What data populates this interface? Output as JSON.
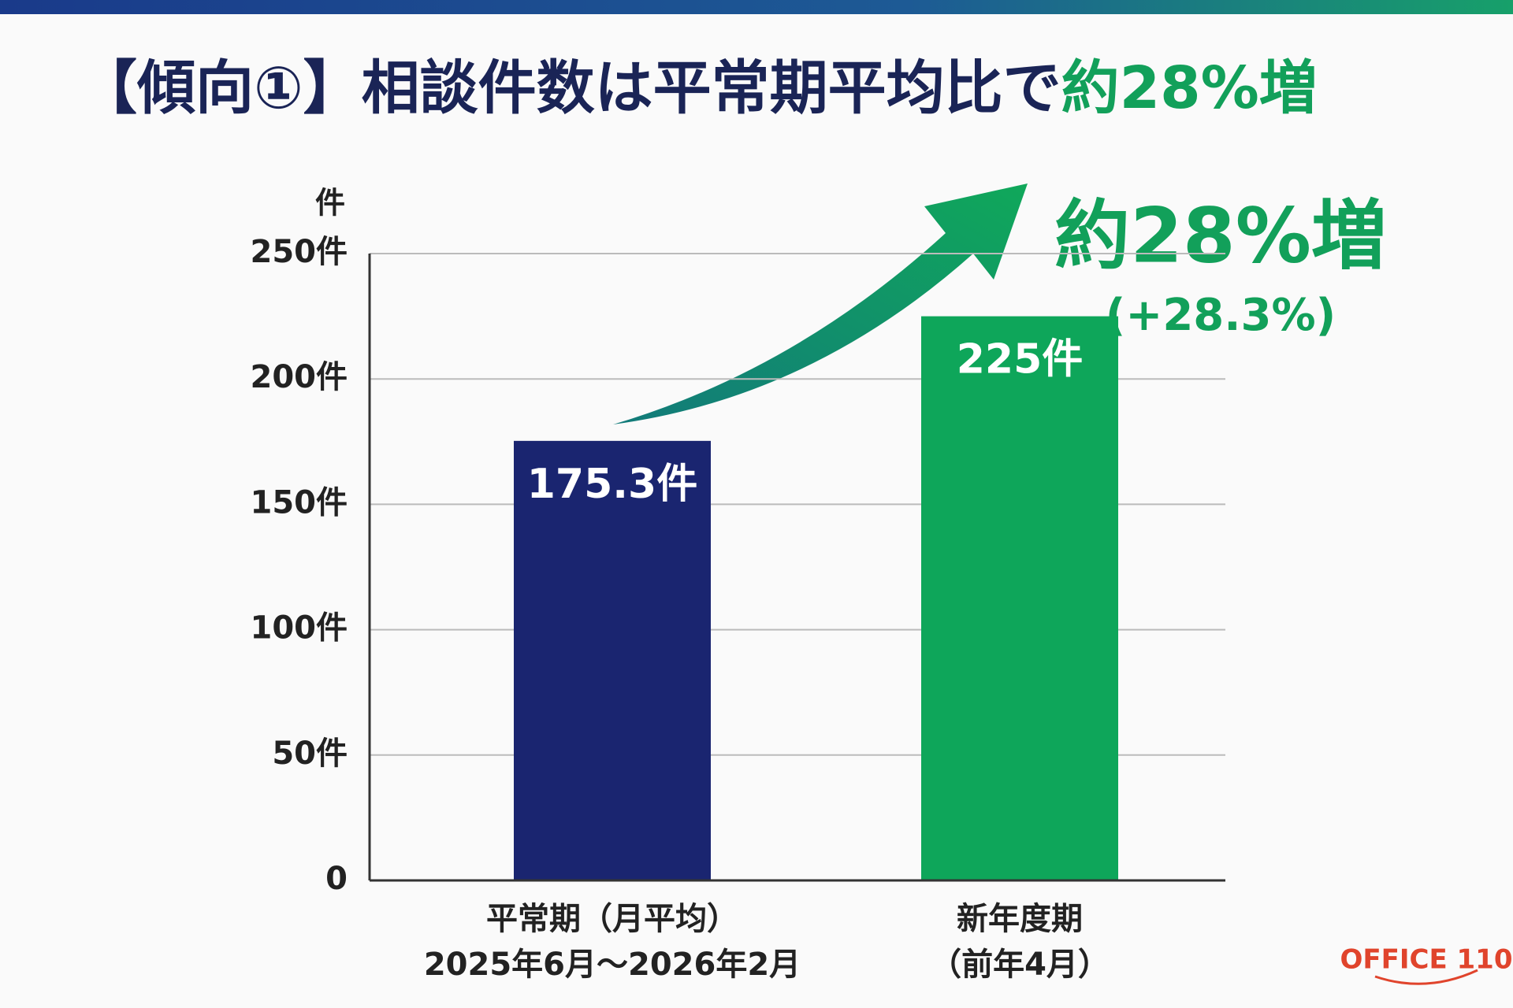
{
  "chart_data": {
    "type": "bar",
    "title": "【傾向①】相談件数は平常期平均比で",
    "title_highlight": "約28%増",
    "y_unit": "件",
    "categories": [
      "平常期（月平均）",
      "新年度期"
    ],
    "category_notes": [
      "2025年6月〜2026年2月",
      "（前年4月）"
    ],
    "values": [
      175.3,
      225
    ],
    "value_labels": [
      "175.3件",
      "225件"
    ],
    "colors": [
      "#1a2570",
      "#0ea65a"
    ],
    "ylim": [
      0,
      250
    ],
    "yticks": [
      0,
      {
        "value": 50,
        "label": "50件"
      },
      {
        "value": 100,
        "label": "100件"
      },
      {
        "value": 150,
        "label": "150件"
      },
      {
        "value": 200,
        "label": "200件"
      },
      {
        "value": 250,
        "label": "250件"
      }
    ],
    "grid": true,
    "annotation": "約28%増",
    "annotation_note": "(+28.3%)",
    "logo": "OFFICE 110"
  }
}
